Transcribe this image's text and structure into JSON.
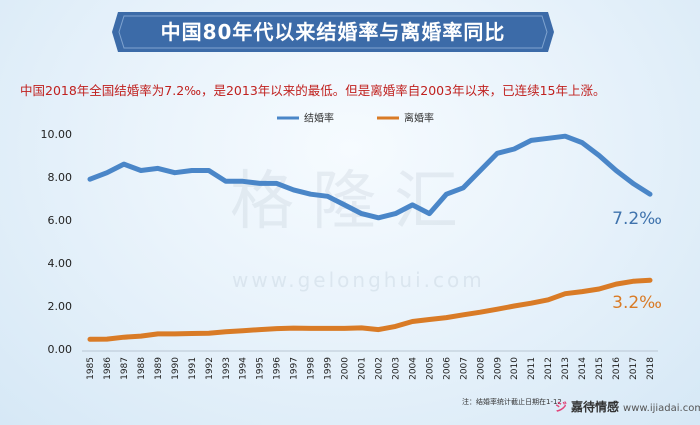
{
  "title": "中国80年代以来结婚率与离婚率同比",
  "subtitle": "中国2018年全国结婚率为7.2‰，是2013年以来的最低。但是离婚率自2003年以来，已连续15年上涨。",
  "watermark": {
    "text": "格隆汇",
    "url": "www.gelonghui.com"
  },
  "footnote": "注：结婚率统计截止日期在1-12",
  "brand": {
    "mark": "ジ",
    "name": "嘉待情感",
    "url": "www.ijiadai.com"
  },
  "colors": {
    "banner": "#3c6ba8",
    "marriage": "#4a86c8",
    "divorce": "#d97b26",
    "annotation": "#3f73ad"
  },
  "chart_data": {
    "type": "line",
    "x": [
      "1985",
      "1986",
      "1987",
      "1988",
      "1989",
      "1990",
      "1991",
      "1992",
      "1993",
      "1994",
      "1995",
      "1996",
      "1997",
      "1998",
      "1999",
      "2000",
      "2001",
      "2002",
      "2003",
      "2004",
      "2005",
      "2006",
      "2007",
      "2008",
      "2009",
      "2010",
      "2011",
      "2012",
      "2013",
      "2014",
      "2015",
      "2016",
      "2017",
      "2018"
    ],
    "series": [
      {
        "name": "结婚率",
        "color": "#4a86c8",
        "values": [
          7.9,
          8.2,
          8.6,
          8.3,
          8.4,
          8.2,
          8.3,
          8.3,
          7.8,
          7.8,
          7.7,
          7.7,
          7.4,
          7.2,
          7.1,
          6.7,
          6.3,
          6.1,
          6.3,
          6.7,
          6.3,
          7.2,
          7.5,
          8.3,
          9.1,
          9.3,
          9.7,
          9.8,
          9.9,
          9.6,
          9.0,
          8.3,
          7.7,
          7.2
        ]
      },
      {
        "name": "离婚率",
        "color": "#d97b26",
        "values": [
          0.45,
          0.46,
          0.55,
          0.6,
          0.7,
          0.7,
          0.72,
          0.73,
          0.8,
          0.85,
          0.9,
          0.95,
          0.97,
          0.96,
          0.96,
          0.96,
          0.98,
          0.9,
          1.05,
          1.28,
          1.37,
          1.46,
          1.59,
          1.71,
          1.85,
          2.0,
          2.13,
          2.29,
          2.57,
          2.67,
          2.79,
          3.02,
          3.15,
          3.2
        ]
      }
    ],
    "yticks": [
      "0.00",
      "2.00",
      "4.00",
      "6.00",
      "8.00",
      "10.00"
    ],
    "ylim": [
      0,
      12
    ],
    "annotations": [
      {
        "text": "7.2‰",
        "series": 0,
        "year": "2018"
      },
      {
        "text": "3.2‰",
        "series": 1,
        "year": "2018"
      }
    ],
    "legend_position": "top-center",
    "grid": false
  }
}
